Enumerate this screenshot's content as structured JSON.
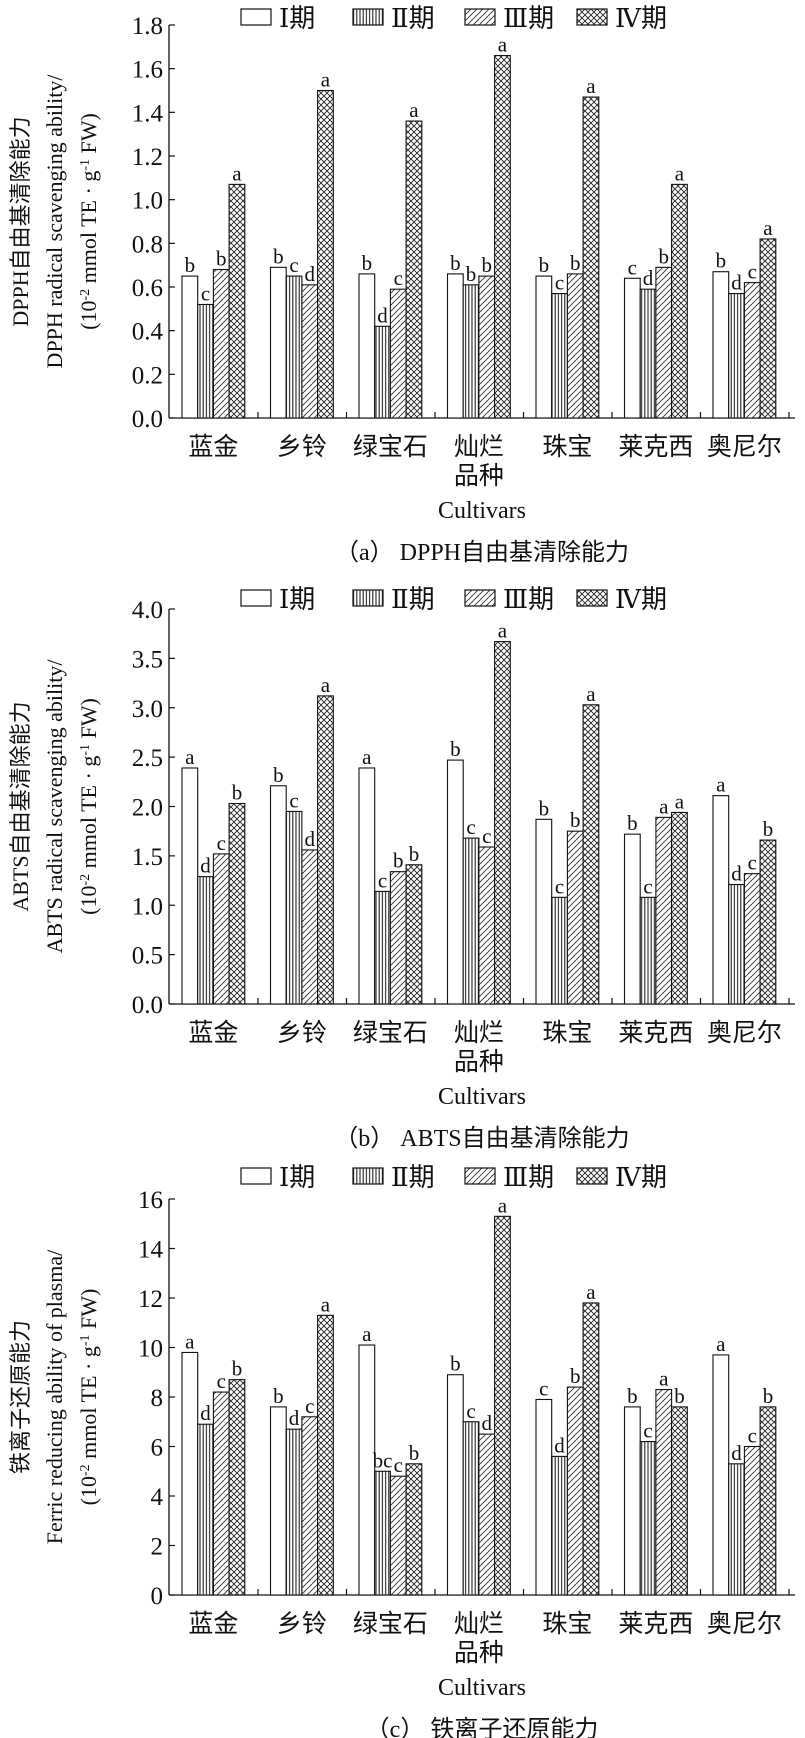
{
  "legend": [
    "Ⅰ期",
    "Ⅱ期",
    "Ⅲ期",
    "Ⅳ期"
  ],
  "unit": {
    "pre": "(10",
    "exp1": "-2",
    "mid": " mmol TE · g",
    "exp2": "-1",
    "post": " FW)"
  },
  "chart_data": [
    {
      "type": "bar",
      "caption": "（a） DPPH自由基清除能力",
      "ylabel_cn": "DPPH自由基清除能力",
      "ylabel_en": "DPPH radical scavenging ability/",
      "xlabel_cn": "品种",
      "xlabel_en": "Cultivars",
      "categories": [
        "蓝金",
        "乡铃",
        "绿宝石",
        "灿烂",
        "珠宝",
        "莱克西",
        "奥尼尔"
      ],
      "ylim": [
        0,
        1.8
      ],
      "yticks": [
        "0.0",
        "0.2",
        "0.4",
        "0.6",
        "0.8",
        "1.0",
        "1.2",
        "1.4",
        "1.6",
        "1.8"
      ],
      "series": [
        {
          "name": "Ⅰ期",
          "values": [
            0.65,
            0.69,
            0.66,
            0.66,
            0.65,
            0.64,
            0.67
          ],
          "letters": [
            "b",
            "b",
            "b",
            "b",
            "b",
            "c",
            "b"
          ]
        },
        {
          "name": "Ⅱ期",
          "values": [
            0.52,
            0.65,
            0.42,
            0.61,
            0.57,
            0.59,
            0.57
          ],
          "letters": [
            "c",
            "c",
            "d",
            "b",
            "c",
            "d",
            "d"
          ]
        },
        {
          "name": "Ⅲ期",
          "values": [
            0.68,
            0.61,
            0.59,
            0.65,
            0.66,
            0.69,
            0.62
          ],
          "letters": [
            "b",
            "d",
            "c",
            "b",
            "b",
            "b",
            "c"
          ]
        },
        {
          "name": "Ⅳ期",
          "values": [
            1.07,
            1.5,
            1.36,
            1.66,
            1.47,
            1.07,
            0.82
          ],
          "letters": [
            "a",
            "a",
            "a",
            "a",
            "a",
            "a",
            "a"
          ]
        }
      ]
    },
    {
      "type": "bar",
      "caption": "（b） ABTS自由基清除能力",
      "ylabel_cn": "ABTS自由基清除能力",
      "ylabel_en": "ABTS radical scavenging ability/",
      "xlabel_cn": "品种",
      "xlabel_en": "Cultivars",
      "categories": [
        "蓝金",
        "乡铃",
        "绿宝石",
        "灿烂",
        "珠宝",
        "莱克西",
        "奥尼尔"
      ],
      "ylim": [
        0,
        4.0
      ],
      "yticks": [
        "0.0",
        "0.5",
        "1.0",
        "1.5",
        "2.0",
        "2.5",
        "3.0",
        "3.5",
        "4.0"
      ],
      "series": [
        {
          "name": "Ⅰ期",
          "values": [
            2.39,
            2.21,
            2.39,
            2.47,
            1.87,
            1.72,
            2.11
          ],
          "letters": [
            "a",
            "b",
            "a",
            "b",
            "b",
            "b",
            "a"
          ]
        },
        {
          "name": "Ⅱ期",
          "values": [
            1.29,
            1.95,
            1.14,
            1.68,
            1.08,
            1.08,
            1.21
          ],
          "letters": [
            "d",
            "c",
            "c",
            "c",
            "c",
            "c",
            "d"
          ]
        },
        {
          "name": "Ⅲ期",
          "values": [
            1.52,
            1.56,
            1.34,
            1.59,
            1.75,
            1.89,
            1.32
          ],
          "letters": [
            "c",
            "d",
            "b",
            "c",
            "b",
            "a",
            "c"
          ]
        },
        {
          "name": "Ⅳ期",
          "values": [
            2.03,
            3.12,
            1.41,
            3.67,
            3.03,
            1.94,
            1.66
          ],
          "letters": [
            "b",
            "a",
            "b",
            "a",
            "a",
            "a",
            "b"
          ]
        }
      ]
    },
    {
      "type": "bar",
      "caption": "（c） 铁离子还原能力",
      "ylabel_cn": "铁离子还原能力",
      "ylabel_en": "Ferric reducing ability of plasma/",
      "xlabel_cn": "品种",
      "xlabel_en": "Cultivars",
      "categories": [
        "蓝金",
        "乡铃",
        "绿宝石",
        "灿烂",
        "珠宝",
        "莱克西",
        "奥尼尔"
      ],
      "ylim": [
        0,
        16
      ],
      "yticks": [
        "0",
        "2",
        "4",
        "6",
        "8",
        "10",
        "12",
        "14",
        "16"
      ],
      "series": [
        {
          "name": "Ⅰ期",
          "values": [
            9.8,
            7.6,
            10.1,
            8.9,
            7.9,
            7.6,
            9.7
          ],
          "letters": [
            "a",
            "b",
            "a",
            "b",
            "c",
            "b",
            "a"
          ]
        },
        {
          "name": "Ⅱ期",
          "values": [
            6.9,
            6.7,
            5.0,
            7.0,
            5.6,
            6.2,
            5.3
          ],
          "letters": [
            "d",
            "d",
            "bc",
            "c",
            "d",
            "c",
            "d"
          ]
        },
        {
          "name": "Ⅲ期",
          "values": [
            8.2,
            7.2,
            4.8,
            6.5,
            8.4,
            8.3,
            6.0
          ],
          "letters": [
            "c",
            "c",
            "c",
            "d",
            "b",
            "a",
            "c"
          ]
        },
        {
          "name": "Ⅳ期",
          "values": [
            8.7,
            11.3,
            5.3,
            15.3,
            11.8,
            7.6,
            7.6
          ],
          "letters": [
            "b",
            "a",
            "b",
            "a",
            "a",
            "b",
            "b"
          ]
        }
      ]
    }
  ]
}
